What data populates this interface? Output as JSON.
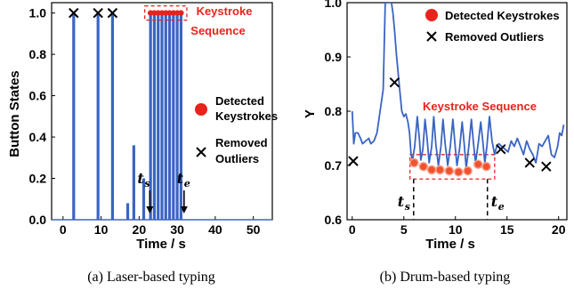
{
  "chart_data": [
    {
      "id": "a",
      "type": "line",
      "caption": "(a) Laser-based typing",
      "xlabel": "Time / s",
      "ylabel": "Button States",
      "xlim": [
        -3,
        55
      ],
      "ylim": [
        0,
        1.05
      ],
      "xticks": [
        0,
        10,
        20,
        30,
        40,
        50
      ],
      "yticks": [
        0.0,
        0.2,
        0.4,
        0.6,
        0.8,
        1.0
      ],
      "ytick_labels": [
        "0.0",
        "0.2",
        "0.4",
        "0.6",
        "0.8",
        "1.0"
      ],
      "line_color": "#3a64c4",
      "grid": false,
      "spikes": [
        {
          "x": 2.8,
          "y": 1.0
        },
        {
          "x": 9.2,
          "y": 1.0
        },
        {
          "x": 13.0,
          "y": 1.0
        },
        {
          "x": 17.0,
          "y": 0.08
        },
        {
          "x": 18.6,
          "y": 0.36
        },
        {
          "x": 21.2,
          "y": 0.2
        },
        {
          "x": 23.0,
          "y": 1.0
        },
        {
          "x": 24.0,
          "y": 1.0
        },
        {
          "x": 25.0,
          "y": 1.0
        },
        {
          "x": 26.0,
          "y": 1.0
        },
        {
          "x": 27.0,
          "y": 1.0
        },
        {
          "x": 28.0,
          "y": 1.0
        },
        {
          "x": 29.0,
          "y": 1.0
        },
        {
          "x": 30.0,
          "y": 1.0
        },
        {
          "x": 31.0,
          "y": 1.0
        }
      ],
      "outliers": [
        {
          "x": 2.8,
          "y": 1.0
        },
        {
          "x": 9.2,
          "y": 1.0
        },
        {
          "x": 13.0,
          "y": 1.0
        }
      ],
      "keystrokes": [
        {
          "x": 23.0,
          "y": 1.0
        },
        {
          "x": 24.0,
          "y": 1.0
        },
        {
          "x": 25.0,
          "y": 1.0
        },
        {
          "x": 26.0,
          "y": 1.0
        },
        {
          "x": 27.0,
          "y": 1.0
        },
        {
          "x": 28.0,
          "y": 1.0
        },
        {
          "x": 29.0,
          "y": 1.0
        },
        {
          "x": 30.0,
          "y": 1.0
        },
        {
          "x": 31.0,
          "y": 1.0
        }
      ],
      "annotations": {
        "sequence_label_1": "Keystroke",
        "sequence_label_2": "Sequence",
        "ts": "t",
        "ts_sub": "s",
        "te": "t",
        "te_sub": "e",
        "ts_x": 22.8,
        "te_x": 31.8
      },
      "legend": {
        "placement": "right",
        "keystrokes_1": "Detected",
        "keystrokes_2": "Keystrokes",
        "outliers_1": "Removed",
        "outliers_2": "Outliers"
      }
    },
    {
      "id": "b",
      "type": "line",
      "caption": "(b) Drum-based typing",
      "xlabel": "Time / s",
      "ylabel": "Y",
      "xlim": [
        -0.5,
        20.8
      ],
      "ylim": [
        0.6,
        1.0
      ],
      "xticks": [
        0,
        5,
        10,
        15,
        20
      ],
      "yticks": [
        0.6,
        0.7,
        0.8,
        0.9,
        1.0
      ],
      "ytick_labels": [
        "0.6",
        "0.7",
        "0.8",
        "0.9",
        "1.0"
      ],
      "line_color": "#3a64c4",
      "grid": false,
      "series": {
        "x": [
          0.0,
          0.15,
          0.3,
          0.55,
          0.8,
          1.0,
          1.3,
          1.6,
          1.8,
          2.1,
          2.4,
          2.7,
          3.0,
          3.2,
          3.4,
          3.6,
          3.8,
          3.95,
          4.1,
          4.3,
          4.5,
          4.65,
          4.8,
          5.0,
          5.2,
          5.4,
          5.55,
          5.7,
          5.85,
          6.05,
          6.3,
          6.5,
          6.65,
          6.85,
          7.05,
          7.25,
          7.45,
          7.7,
          7.9,
          8.1,
          8.35,
          8.6,
          8.8,
          9.0,
          9.25,
          9.5,
          9.75,
          9.95,
          10.15,
          10.4,
          10.65,
          10.85,
          11.05,
          11.3,
          11.55,
          11.75,
          11.95,
          12.2,
          12.45,
          12.65,
          12.85,
          13.05,
          13.3,
          13.55,
          13.8,
          14.0,
          14.2,
          14.5,
          14.8,
          15.1,
          15.4,
          15.7,
          16.0,
          16.3,
          16.6,
          16.9,
          17.2,
          17.5,
          17.8,
          18.1,
          18.4,
          18.7,
          19.0,
          19.3,
          19.6,
          19.9,
          20.1,
          20.3,
          20.5
        ],
        "y": [
          0.8,
          0.74,
          0.76,
          0.76,
          0.75,
          0.74,
          0.745,
          0.75,
          0.74,
          0.745,
          0.76,
          0.8,
          0.84,
          1.0,
          1.0,
          1.0,
          1.0,
          0.98,
          0.95,
          0.9,
          0.86,
          0.83,
          0.8,
          0.79,
          0.795,
          0.78,
          0.76,
          0.72,
          0.71,
          0.735,
          0.79,
          0.75,
          0.71,
          0.73,
          0.785,
          0.75,
          0.705,
          0.735,
          0.79,
          0.74,
          0.7,
          0.735,
          0.785,
          0.74,
          0.7,
          0.735,
          0.785,
          0.74,
          0.7,
          0.73,
          0.78,
          0.74,
          0.695,
          0.735,
          0.785,
          0.74,
          0.705,
          0.74,
          0.78,
          0.745,
          0.705,
          0.735,
          0.79,
          0.745,
          0.72,
          0.735,
          0.74,
          0.735,
          0.73,
          0.725,
          0.745,
          0.735,
          0.75,
          0.735,
          0.72,
          0.745,
          0.73,
          0.72,
          0.705,
          0.74,
          0.735,
          0.745,
          0.755,
          0.72,
          0.715,
          0.735,
          0.76,
          0.755,
          0.775
        ]
      },
      "outliers": [
        {
          "x": 0.1,
          "y": 0.708
        },
        {
          "x": 4.1,
          "y": 0.853
        },
        {
          "x": 14.4,
          "y": 0.73
        },
        {
          "x": 17.2,
          "y": 0.705
        },
        {
          "x": 18.8,
          "y": 0.698
        }
      ],
      "keystrokes": [
        {
          "x": 6.0,
          "y": 0.705
        },
        {
          "x": 6.9,
          "y": 0.698
        },
        {
          "x": 7.7,
          "y": 0.692
        },
        {
          "x": 8.5,
          "y": 0.692
        },
        {
          "x": 9.4,
          "y": 0.69
        },
        {
          "x": 10.3,
          "y": 0.688
        },
        {
          "x": 11.2,
          "y": 0.69
        },
        {
          "x": 12.2,
          "y": 0.702
        },
        {
          "x": 13.0,
          "y": 0.698
        }
      ],
      "annotations": {
        "sequence_label": "Keystroke Sequence",
        "ts": "t",
        "ts_sub": "s",
        "te": "t",
        "te_sub": "e",
        "ts_x": 5.95,
        "te_x": 13.1
      },
      "legend": {
        "placement": "top-right",
        "keystrokes": "Detected Keystrokes",
        "outliers": "Removed Outliers"
      }
    }
  ]
}
